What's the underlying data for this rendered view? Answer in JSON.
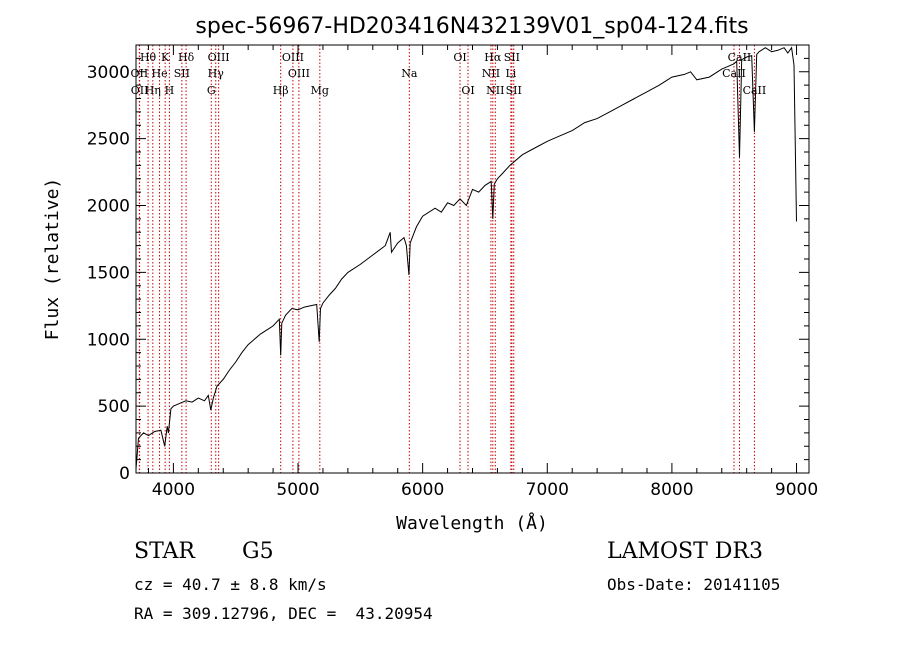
{
  "chart_data": {
    "type": "line",
    "title": "spec-56967-HD203416N432139V01_sp04-124.fits",
    "xlabel": "Wavelength (Å)",
    "ylabel": "Flux (relative)",
    "xlim": [
      3700,
      9100
    ],
    "ylim": [
      0,
      3200
    ],
    "xticks": [
      4000,
      5000,
      6000,
      7000,
      8000,
      9000
    ],
    "yticks": [
      0,
      500,
      1000,
      1500,
      2000,
      2500,
      3000
    ],
    "series": [
      {
        "name": "flux",
        "x": [
          3700,
          3720,
          3760,
          3800,
          3850,
          3900,
          3930,
          3950,
          3960,
          3980,
          4000,
          4050,
          4100,
          4150,
          4200,
          4250,
          4280,
          4300,
          4320,
          4340,
          4350,
          4400,
          4450,
          4500,
          4550,
          4600,
          4700,
          4750,
          4800,
          4850,
          4861,
          4870,
          4900,
          4950,
          5000,
          5050,
          5100,
          5150,
          5170,
          5180,
          5200,
          5250,
          5300,
          5350,
          5400,
          5500,
          5600,
          5700,
          5740,
          5750,
          5800,
          5850,
          5870,
          5890,
          5900,
          5950,
          6000,
          6100,
          6150,
          6200,
          6250,
          6300,
          6350,
          6400,
          6450,
          6500,
          6550,
          6563,
          6575,
          6600,
          6650,
          6700,
          6800,
          6900,
          7000,
          7100,
          7200,
          7300,
          7400,
          7500,
          7600,
          7700,
          7800,
          7900,
          8000,
          8100,
          8150,
          8200,
          8300,
          8400,
          8450,
          8500,
          8520,
          8542,
          8560,
          8600,
          8640,
          8662,
          8680,
          8700,
          8750,
          8800,
          8850,
          8900,
          8930,
          8960,
          8980,
          9000
        ],
        "y": [
          30,
          260,
          300,
          280,
          310,
          320,
          200,
          350,
          300,
          480,
          500,
          520,
          540,
          530,
          560,
          540,
          580,
          470,
          560,
          620,
          650,
          700,
          770,
          830,
          900,
          960,
          1040,
          1070,
          1100,
          1150,
          880,
          1120,
          1180,
          1230,
          1220,
          1240,
          1250,
          1260,
          980,
          1230,
          1270,
          1330,
          1380,
          1450,
          1500,
          1560,
          1630,
          1700,
          1800,
          1650,
          1720,
          1760,
          1700,
          1480,
          1720,
          1840,
          1920,
          1980,
          1950,
          2020,
          2000,
          2050,
          2000,
          2120,
          2100,
          2150,
          2180,
          1900,
          2160,
          2200,
          2250,
          2300,
          2380,
          2430,
          2480,
          2520,
          2560,
          2620,
          2650,
          2700,
          2750,
          2800,
          2850,
          2900,
          2960,
          2980,
          3000,
          2940,
          2960,
          3020,
          3040,
          3060,
          3080,
          2360,
          3090,
          3110,
          3120,
          2550,
          3130,
          3150,
          3180,
          3150,
          3160,
          3180,
          3140,
          3180,
          3050,
          1880
        ]
      }
    ],
    "spectral_lines": [
      {
        "label": "Hθ",
        "x": 3797,
        "row": 1
      },
      {
        "label": "OII",
        "x": 3727,
        "row": 2
      },
      {
        "label": "OII",
        "x": 3729,
        "row": 3
      },
      {
        "label": "K",
        "x": 3934,
        "row": 1
      },
      {
        "label": "He",
        "x": 3889,
        "row": 2
      },
      {
        "label": "Hη",
        "x": 3835,
        "row": 3
      },
      {
        "label": "SII",
        "x": 4068,
        "row": 2
      },
      {
        "label": "H",
        "x": 3968,
        "row": 3
      },
      {
        "label": "Hδ",
        "x": 4102,
        "row": 1
      },
      {
        "label": "OIII",
        "x": 4363,
        "row": 1
      },
      {
        "label": "Hγ",
        "x": 4340,
        "row": 2
      },
      {
        "label": "G",
        "x": 4304,
        "row": 3
      },
      {
        "label": "Hβ",
        "x": 4861,
        "row": 3
      },
      {
        "label": "OIII",
        "x": 4959,
        "row": 1
      },
      {
        "label": "OIII",
        "x": 5007,
        "row": 2
      },
      {
        "label": "Mg",
        "x": 5175,
        "row": 3
      },
      {
        "label": "Na",
        "x": 5893,
        "row": 2
      },
      {
        "label": "OI",
        "x": 6300,
        "row": 1
      },
      {
        "label": "OI",
        "x": 6364,
        "row": 3
      },
      {
        "label": "Hα",
        "x": 6563,
        "row": 1
      },
      {
        "label": "NII",
        "x": 6548,
        "row": 2
      },
      {
        "label": "NII",
        "x": 6583,
        "row": 3
      },
      {
        "label": "SII",
        "x": 6716,
        "row": 1
      },
      {
        "label": "Li",
        "x": 6708,
        "row": 2
      },
      {
        "label": "SII",
        "x": 6731,
        "row": 3
      },
      {
        "label": "CaII",
        "x": 8498,
        "row": 2
      },
      {
        "label": "CaII",
        "x": 8542,
        "row": 1
      },
      {
        "label": "CaII",
        "x": 8662,
        "row": 3
      }
    ]
  },
  "info": {
    "class": "STAR",
    "subclass": "G5",
    "survey": "LAMOST DR3",
    "cz": "cz = 40.7 ± 8.8 km/s",
    "obs_date": "Obs-Date: 20141105",
    "coords": "RA = 309.12796, DEC =  43.20954"
  }
}
